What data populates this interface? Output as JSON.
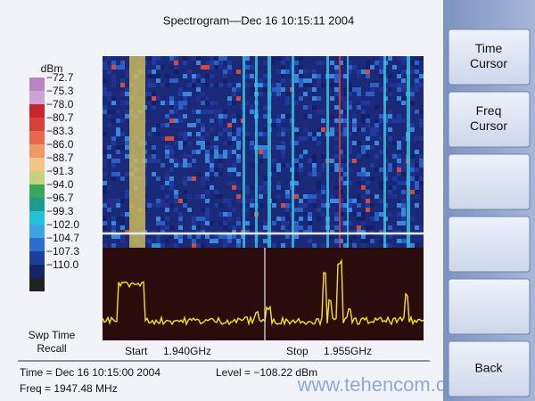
{
  "screen": {
    "title": "Spectrogram—Dec 16 10:15:11 2004",
    "scale": {
      "unit": "dBm",
      "labels": [
        "−72.7",
        "−75.3",
        "−78.0",
        "−80.7",
        "−83.3",
        "−86.0",
        "−88.7",
        "−91.3",
        "−94.0",
        "−96.7",
        "−99.3",
        "−102.0",
        "−104.7",
        "−107.3",
        "−110.0"
      ],
      "colors": [
        "#b784c4",
        "#c9a6d6",
        "#c8262c",
        "#d8403a",
        "#e9684a",
        "#f09a63",
        "#f2c48a",
        "#c8d27a",
        "#3aa65a",
        "#1f9a8e",
        "#22c2d8",
        "#3fa3e0",
        "#2c6ed0",
        "#1f3f9e",
        "#18246a",
        "#222222"
      ]
    },
    "recall_label": [
      "Swp Time",
      "Recall"
    ],
    "start": {
      "label": "Start",
      "value": "1.940GHz"
    },
    "stop": {
      "label": "Stop",
      "value": "1.955GHz"
    },
    "status": {
      "time": "Time = Dec 16 10:15:00 2004",
      "level": "Level = −108.22 dBm",
      "freq": "Freq = 1947.48 MHz"
    },
    "softkeys": [
      [
        "Time",
        "Cursor"
      ],
      [
        "Freq",
        "Cursor"
      ],
      [],
      [],
      [],
      [
        "Back"
      ]
    ],
    "watermark": "www.tehencom.com"
  }
}
